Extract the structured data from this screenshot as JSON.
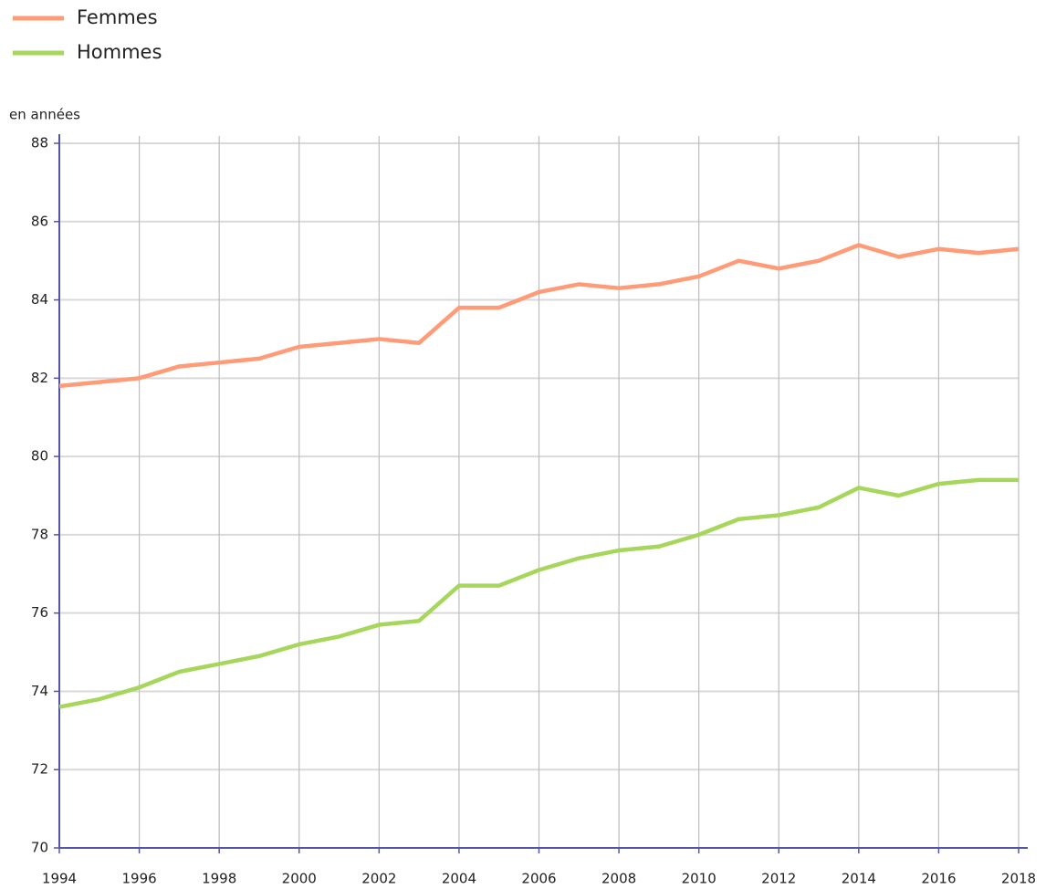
{
  "chart_data": {
    "type": "line",
    "y_axis_label": "en années",
    "x": [
      1994,
      1995,
      1996,
      1997,
      1998,
      1999,
      2000,
      2001,
      2002,
      2003,
      2004,
      2005,
      2006,
      2007,
      2008,
      2009,
      2010,
      2011,
      2012,
      2013,
      2014,
      2015,
      2016,
      2017,
      2018
    ],
    "series": [
      {
        "name": "Femmes",
        "color": "#ff9b76",
        "values": [
          81.8,
          81.9,
          82.0,
          82.3,
          82.4,
          82.5,
          82.8,
          82.9,
          83.0,
          82.9,
          83.8,
          83.8,
          84.2,
          84.4,
          84.3,
          84.4,
          84.6,
          85.0,
          84.8,
          85.0,
          85.4,
          85.1,
          85.3,
          85.2,
          85.3
        ]
      },
      {
        "name": "Hommes",
        "color": "#a6d65b",
        "values": [
          73.6,
          73.8,
          74.1,
          74.5,
          74.7,
          74.9,
          75.2,
          75.4,
          75.7,
          75.8,
          76.7,
          76.7,
          77.1,
          77.4,
          77.6,
          77.7,
          78.0,
          78.4,
          78.5,
          78.7,
          79.2,
          79.0,
          79.3,
          79.4,
          79.4
        ]
      }
    ],
    "xlim": [
      1994,
      2018
    ],
    "xticks": [
      1994,
      1996,
      1998,
      2000,
      2002,
      2004,
      2006,
      2008,
      2010,
      2012,
      2014,
      2016,
      2018
    ],
    "ylim": [
      70,
      88
    ],
    "yticks": [
      70,
      72,
      74,
      76,
      78,
      80,
      82,
      84,
      86,
      88
    ],
    "grid": true,
    "legend": "top-left"
  }
}
